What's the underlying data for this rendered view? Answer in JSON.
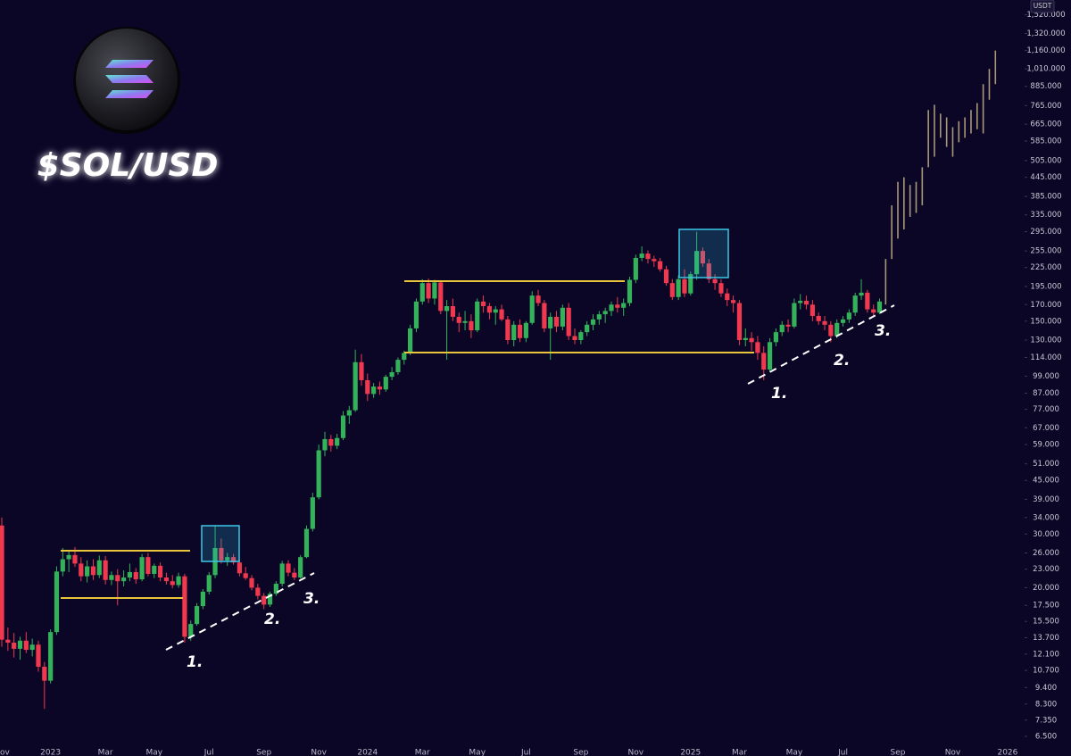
{
  "chart_data": {
    "type": "candlestick",
    "title": "$SOL/USD",
    "currency": "USDT",
    "log_scale": true,
    "ylim": [
      6.2,
      1700
    ],
    "yticks": [
      {
        "value": 1520,
        "label": "1,520.000"
      },
      {
        "value": 1320,
        "label": "1,320.000"
      },
      {
        "value": 1160,
        "label": "1,160.000"
      },
      {
        "value": 1010,
        "label": "1,010.000"
      },
      {
        "value": 885,
        "label": "885.000"
      },
      {
        "value": 765,
        "label": "765.000"
      },
      {
        "value": 665,
        "label": "665.000"
      },
      {
        "value": 585,
        "label": "585.000"
      },
      {
        "value": 505,
        "label": "505.000"
      },
      {
        "value": 445,
        "label": "445.000"
      },
      {
        "value": 385,
        "label": "385.000"
      },
      {
        "value": 335,
        "label": "335.000"
      },
      {
        "value": 295,
        "label": "295.000"
      },
      {
        "value": 255,
        "label": "255.000"
      },
      {
        "value": 225,
        "label": "225.000"
      },
      {
        "value": 195,
        "label": "195.000"
      },
      {
        "value": 170,
        "label": "170.000"
      },
      {
        "value": 150,
        "label": "150.000"
      },
      {
        "value": 130,
        "label": "130.000"
      },
      {
        "value": 114,
        "label": "114.000"
      },
      {
        "value": 99,
        "label": "99.000"
      },
      {
        "value": 87,
        "label": "87.000"
      },
      {
        "value": 77,
        "label": "77.000"
      },
      {
        "value": 67,
        "label": "67.000"
      },
      {
        "value": 59,
        "label": "59.000"
      },
      {
        "value": 51,
        "label": "51.000"
      },
      {
        "value": 45,
        "label": "45.000"
      },
      {
        "value": 39,
        "label": "39.000"
      },
      {
        "value": 34,
        "label": "34.000"
      },
      {
        "value": 30,
        "label": "30.000"
      },
      {
        "value": 26,
        "label": "26.000"
      },
      {
        "value": 23,
        "label": "23.000"
      },
      {
        "value": 20,
        "label": "20.000"
      },
      {
        "value": 17.5,
        "label": "17.500"
      },
      {
        "value": 15.5,
        "label": "15.500"
      },
      {
        "value": 13.7,
        "label": "13.700"
      },
      {
        "value": 12.1,
        "label": "12.100"
      },
      {
        "value": 10.7,
        "label": "10.700"
      },
      {
        "value": 9.4,
        "label": "9.400"
      },
      {
        "value": 8.3,
        "label": "8.300"
      },
      {
        "value": 7.35,
        "label": "7.350"
      },
      {
        "value": 6.5,
        "label": "6.500"
      }
    ],
    "up_color": "#34b25a",
    "down_color": "#f0384f",
    "projection_color": "#a99878",
    "annotations": [
      "1.",
      "2.",
      "3.",
      "1.",
      "2.",
      "3."
    ],
    "categories": [
      "Nov",
      null,
      null,
      null,
      null,
      null,
      null,
      null,
      "2023",
      null,
      null,
      null,
      null,
      null,
      null,
      null,
      null,
      "Mar",
      null,
      null,
      null,
      null,
      null,
      null,
      null,
      "May",
      null,
      null,
      null,
      null,
      null,
      null,
      null,
      null,
      "Jul",
      null,
      null,
      null,
      null,
      null,
      null,
      null,
      null,
      "Sep",
      null,
      null,
      null,
      null,
      null,
      null,
      null,
      null,
      "Nov",
      null,
      null,
      null,
      null,
      null,
      null,
      null,
      "2024",
      null,
      null,
      null,
      null,
      null,
      null,
      null,
      null,
      "Mar",
      null,
      null,
      null,
      null,
      null,
      null,
      null,
      null,
      "May",
      null,
      null,
      null,
      null,
      null,
      null,
      null,
      "Jul",
      null,
      null,
      null,
      null,
      null,
      null,
      null,
      null,
      "Sep",
      null,
      null,
      null,
      null,
      null,
      null,
      null,
      null,
      "Nov",
      null,
      null,
      null,
      null,
      null,
      null,
      null,
      null,
      "2025",
      null,
      null,
      null,
      null,
      null,
      null,
      null,
      "Mar",
      null,
      null,
      null,
      null,
      null,
      null,
      null,
      null,
      "May",
      null,
      null,
      null,
      null,
      null,
      null,
      null,
      "Jul",
      null,
      null,
      null,
      null,
      null,
      null,
      null,
      null,
      "Sep",
      null,
      null,
      null,
      null,
      null,
      null,
      null,
      null,
      "Nov",
      null,
      null,
      null,
      null,
      null,
      null,
      null,
      null,
      "2026"
    ],
    "candles": [
      [
        32,
        34,
        12.8,
        13.5
      ],
      [
        13.5,
        14.8,
        12.4,
        13.2
      ],
      [
        13.2,
        14.2,
        11.8,
        12.6
      ],
      [
        12.6,
        13.8,
        11.6,
        13.4
      ],
      [
        13.4,
        14.3,
        12.2,
        12.5
      ],
      [
        12.5,
        13.6,
        11.9,
        13.0
      ],
      [
        13.0,
        13.4,
        10.6,
        11.0
      ],
      [
        11.0,
        11.4,
        8.0,
        9.9
      ],
      [
        9.9,
        14.6,
        9.7,
        14.3
      ],
      [
        14.3,
        23.5,
        14.0,
        22.6
      ],
      [
        22.6,
        27.0,
        21.8,
        24.8
      ],
      [
        24.8,
        26.5,
        22.5,
        25.6
      ],
      [
        25.6,
        27.2,
        23.4,
        24.0
      ],
      [
        24.0,
        25.2,
        21.0,
        21.8
      ],
      [
        21.8,
        24.6,
        20.8,
        23.5
      ],
      [
        23.5,
        24.8,
        21.2,
        22.0
      ],
      [
        22.0,
        25.5,
        21.5,
        24.6
      ],
      [
        24.6,
        25.4,
        20.5,
        21.2
      ],
      [
        21.2,
        22.6,
        20.4,
        22.0
      ],
      [
        22.0,
        23.0,
        17.5,
        21.0
      ],
      [
        21.0,
        22.8,
        20.2,
        21.6
      ],
      [
        21.6,
        24.0,
        21.0,
        22.5
      ],
      [
        22.5,
        23.2,
        20.6,
        21.3
      ],
      [
        21.3,
        25.8,
        21.0,
        25.2
      ],
      [
        25.2,
        26.0,
        21.8,
        22.2
      ],
      [
        22.2,
        24.0,
        21.5,
        23.6
      ],
      [
        23.6,
        24.2,
        21.0,
        21.6
      ],
      [
        21.6,
        22.4,
        20.5,
        21.0
      ],
      [
        21.0,
        22.0,
        19.9,
        20.4
      ],
      [
        20.4,
        22.4,
        20.0,
        21.8
      ],
      [
        21.8,
        22.2,
        13.2,
        13.8
      ],
      [
        13.8,
        15.6,
        13.4,
        15.2
      ],
      [
        15.2,
        17.8,
        15.0,
        17.4
      ],
      [
        17.4,
        19.8,
        17.0,
        19.4
      ],
      [
        19.4,
        22.5,
        19.0,
        22.0
      ],
      [
        22.0,
        32.0,
        21.5,
        27.0
      ],
      [
        27.0,
        29.0,
        24.0,
        24.6
      ],
      [
        24.6,
        26.0,
        23.6,
        25.2
      ],
      [
        25.2,
        25.8,
        23.8,
        24.2
      ],
      [
        24.2,
        24.8,
        21.8,
        22.3
      ],
      [
        22.3,
        23.4,
        21.2,
        21.5
      ],
      [
        21.5,
        22.0,
        19.6,
        20.0
      ],
      [
        20.0,
        20.6,
        18.3,
        18.8
      ],
      [
        18.8,
        19.2,
        17.0,
        17.6
      ],
      [
        17.6,
        19.4,
        17.3,
        19.1
      ],
      [
        19.1,
        21.0,
        18.8,
        20.6
      ],
      [
        20.6,
        24.5,
        20.2,
        24.0
      ],
      [
        24.0,
        24.6,
        21.8,
        22.4
      ],
      [
        22.4,
        23.2,
        21.2,
        21.6
      ],
      [
        21.6,
        25.6,
        21.4,
        25.2
      ],
      [
        25.2,
        32.0,
        25.0,
        31.2
      ],
      [
        31.2,
        41.0,
        30.6,
        39.6
      ],
      [
        39.6,
        59.0,
        39.0,
        56.5
      ],
      [
        56.5,
        65.0,
        54.0,
        61.5
      ],
      [
        61.5,
        63.5,
        56.0,
        58.5
      ],
      [
        58.5,
        64.0,
        57.0,
        62.0
      ],
      [
        62.0,
        76.0,
        61.0,
        73.5
      ],
      [
        73.5,
        79.0,
        69.0,
        76.5
      ],
      [
        76.5,
        121,
        75.5,
        110
      ],
      [
        110,
        117,
        92,
        96
      ],
      [
        96,
        101,
        82,
        86.5
      ],
      [
        86.5,
        94,
        84,
        91.5
      ],
      [
        91.5,
        95,
        86,
        89.5
      ],
      [
        89.5,
        100,
        88,
        98.5
      ],
      [
        98.5,
        106,
        96,
        102
      ],
      [
        102,
        114,
        100,
        112
      ],
      [
        112,
        120,
        108,
        118
      ],
      [
        118,
        146,
        116,
        142
      ],
      [
        142,
        178,
        138,
        174
      ],
      [
        174,
        206,
        170,
        200
      ],
      [
        200,
        207,
        172,
        178
      ],
      [
        178,
        205,
        170,
        201
      ],
      [
        201,
        204,
        158,
        162
      ],
      [
        162,
        176,
        112,
        168
      ],
      [
        168,
        178,
        150,
        155
      ],
      [
        155,
        160,
        138,
        148
      ],
      [
        148,
        162,
        140,
        150
      ],
      [
        150,
        158,
        132,
        140
      ],
      [
        140,
        178,
        138,
        174
      ],
      [
        174,
        182,
        160,
        168
      ],
      [
        168,
        172,
        152,
        160
      ],
      [
        160,
        168,
        146,
        164
      ],
      [
        164,
        170,
        150,
        152
      ],
      [
        152,
        156,
        126,
        130
      ],
      [
        130,
        150,
        124,
        146
      ],
      [
        146,
        152,
        128,
        132
      ],
      [
        132,
        150,
        128,
        148
      ],
      [
        148,
        188,
        146,
        182
      ],
      [
        182,
        190,
        168,
        172
      ],
      [
        172,
        176,
        138,
        142
      ],
      [
        142,
        160,
        112,
        155
      ],
      [
        155,
        162,
        138,
        144
      ],
      [
        144,
        170,
        140,
        166
      ],
      [
        166,
        172,
        130,
        134
      ],
      [
        134,
        142,
        126,
        130
      ],
      [
        130,
        140,
        126,
        138
      ],
      [
        138,
        150,
        134,
        146
      ],
      [
        146,
        158,
        140,
        152
      ],
      [
        152,
        162,
        146,
        158
      ],
      [
        158,
        166,
        148,
        162
      ],
      [
        162,
        174,
        156,
        170
      ],
      [
        170,
        180,
        160,
        166
      ],
      [
        166,
        178,
        156,
        172
      ],
      [
        172,
        210,
        168,
        205
      ],
      [
        205,
        248,
        200,
        242
      ],
      [
        242,
        264,
        236,
        250
      ],
      [
        250,
        256,
        232,
        240
      ],
      [
        240,
        246,
        226,
        236
      ],
      [
        236,
        242,
        218,
        222
      ],
      [
        222,
        228,
        196,
        200
      ],
      [
        200,
        206,
        176,
        180
      ],
      [
        180,
        212,
        176,
        206
      ],
      [
        206,
        222,
        180,
        185
      ],
      [
        185,
        218,
        182,
        214
      ],
      [
        214,
        295,
        205,
        255
      ],
      [
        255,
        262,
        226,
        232
      ],
      [
        232,
        240,
        200,
        206
      ],
      [
        206,
        214,
        190,
        200
      ],
      [
        200,
        206,
        180,
        185
      ],
      [
        185,
        192,
        168,
        176
      ],
      [
        176,
        182,
        160,
        172
      ],
      [
        172,
        176,
        125,
        130
      ],
      [
        130,
        142,
        124,
        132
      ],
      [
        132,
        138,
        120,
        128
      ],
      [
        128,
        134,
        112,
        118
      ],
      [
        118,
        124,
        96,
        104
      ],
      [
        104,
        132,
        102,
        128
      ],
      [
        128,
        142,
        124,
        138
      ],
      [
        138,
        150,
        134,
        146
      ],
      [
        146,
        152,
        138,
        144
      ],
      [
        144,
        178,
        142,
        172
      ],
      [
        172,
        184,
        164,
        175
      ],
      [
        175,
        182,
        164,
        170
      ],
      [
        170,
        176,
        150,
        156
      ],
      [
        156,
        160,
        146,
        150
      ],
      [
        150,
        156,
        140,
        146
      ],
      [
        146,
        150,
        128,
        134
      ],
      [
        134,
        152,
        132,
        148
      ],
      [
        148,
        156,
        144,
        152
      ],
      [
        152,
        164,
        148,
        160
      ],
      [
        160,
        186,
        156,
        182
      ],
      [
        182,
        206,
        176,
        186
      ],
      [
        186,
        190,
        160,
        164
      ],
      [
        164,
        170,
        156,
        160
      ],
      [
        160,
        178,
        158,
        174
      ],
      null,
      null,
      null,
      null,
      null,
      null,
      null,
      null,
      null,
      null,
      null,
      null,
      null,
      null,
      null,
      null,
      null,
      null,
      null,
      null,
      null
    ],
    "projection": [
      null,
      null,
      null,
      null,
      null,
      null,
      null,
      null,
      null,
      null,
      null,
      null,
      null,
      null,
      null,
      null,
      null,
      null,
      null,
      null,
      null,
      null,
      null,
      null,
      null,
      null,
      null,
      null,
      null,
      null,
      null,
      null,
      null,
      null,
      null,
      null,
      null,
      null,
      null,
      null,
      null,
      null,
      null,
      null,
      null,
      null,
      null,
      null,
      null,
      null,
      null,
      null,
      null,
      null,
      null,
      null,
      null,
      null,
      null,
      null,
      null,
      null,
      null,
      null,
      null,
      null,
      null,
      null,
      null,
      null,
      null,
      null,
      null,
      null,
      null,
      null,
      null,
      null,
      null,
      null,
      null,
      null,
      null,
      null,
      null,
      null,
      null,
      null,
      null,
      null,
      null,
      null,
      null,
      null,
      null,
      null,
      null,
      null,
      null,
      null,
      null,
      null,
      null,
      null,
      null,
      null,
      null,
      null,
      null,
      null,
      null,
      null,
      null,
      null,
      null,
      null,
      null,
      null,
      null,
      null,
      null,
      null,
      null,
      null,
      null,
      null,
      null,
      null,
      null,
      null,
      null,
      null,
      null,
      null,
      null,
      null,
      null,
      null,
      null,
      null,
      null,
      null,
      null,
      null,
      null,
      [
        170,
        240
      ],
      [
        240,
        360
      ],
      [
        280,
        430
      ],
      [
        300,
        445
      ],
      [
        330,
        420
      ],
      [
        340,
        430
      ],
      [
        360,
        480
      ],
      [
        480,
        740
      ],
      [
        520,
        770
      ],
      [
        600,
        720
      ],
      [
        560,
        700
      ],
      [
        520,
        650
      ],
      [
        580,
        680
      ],
      [
        600,
        700
      ],
      [
        620,
        740
      ],
      [
        640,
        780
      ],
      [
        620,
        900
      ],
      [
        800,
        1010
      ],
      [
        900,
        1160
      ],
      null,
      null
    ]
  }
}
